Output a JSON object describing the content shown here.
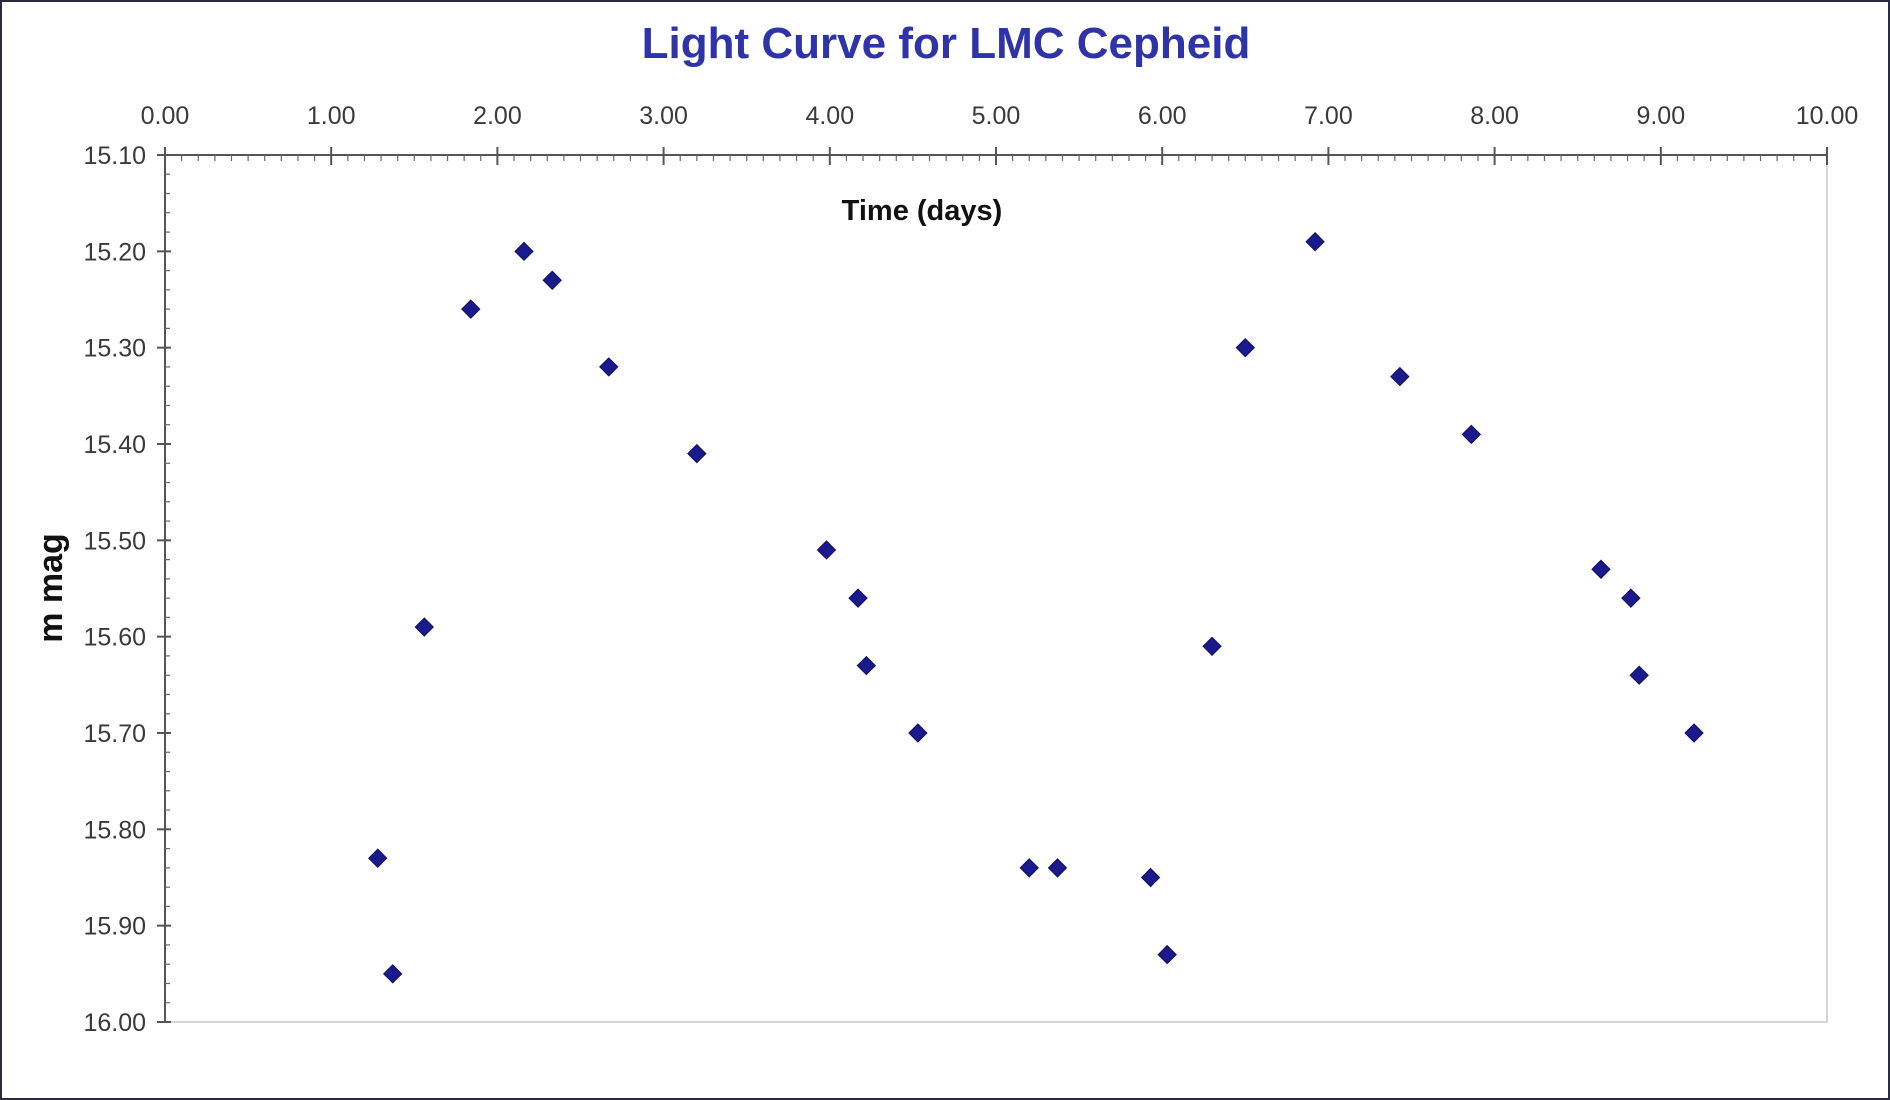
{
  "chart_data": {
    "type": "scatter",
    "title": "Light Curve for LMC Cepheid",
    "xlabel": "Time (days)",
    "ylabel": "m mag",
    "xlim": [
      0,
      10
    ],
    "ylim": [
      15.1,
      16.0
    ],
    "y_inverted": true,
    "x_axis_position": "top",
    "grid": false,
    "legend": "none",
    "marker_color": "#1a1a8c",
    "marker_shape": "diamond",
    "x_ticks": [
      "0.00",
      "1.00",
      "2.00",
      "3.00",
      "4.00",
      "5.00",
      "6.00",
      "7.00",
      "8.00",
      "9.00",
      "10.00"
    ],
    "y_ticks": [
      "15.10",
      "15.20",
      "15.30",
      "15.40",
      "15.50",
      "15.60",
      "15.70",
      "15.80",
      "15.90",
      "16.00"
    ],
    "series": [
      {
        "points": [
          {
            "x": 1.28,
            "y": 15.83
          },
          {
            "x": 1.37,
            "y": 15.95
          },
          {
            "x": 1.56,
            "y": 15.59
          },
          {
            "x": 1.84,
            "y": 15.26
          },
          {
            "x": 2.16,
            "y": 15.2
          },
          {
            "x": 2.33,
            "y": 15.23
          },
          {
            "x": 2.67,
            "y": 15.32
          },
          {
            "x": 3.2,
            "y": 15.41
          },
          {
            "x": 3.98,
            "y": 15.51
          },
          {
            "x": 4.17,
            "y": 15.56
          },
          {
            "x": 4.22,
            "y": 15.63
          },
          {
            "x": 4.53,
            "y": 15.7
          },
          {
            "x": 5.2,
            "y": 15.84
          },
          {
            "x": 5.37,
            "y": 15.84
          },
          {
            "x": 5.93,
            "y": 15.85
          },
          {
            "x": 6.03,
            "y": 15.93
          },
          {
            "x": 6.3,
            "y": 15.61
          },
          {
            "x": 6.5,
            "y": 15.3
          },
          {
            "x": 6.92,
            "y": 15.19
          },
          {
            "x": 7.43,
            "y": 15.33
          },
          {
            "x": 7.86,
            "y": 15.39
          },
          {
            "x": 8.64,
            "y": 15.53
          },
          {
            "x": 8.82,
            "y": 15.56
          },
          {
            "x": 8.87,
            "y": 15.64
          },
          {
            "x": 9.2,
            "y": 15.7
          }
        ]
      }
    ]
  }
}
